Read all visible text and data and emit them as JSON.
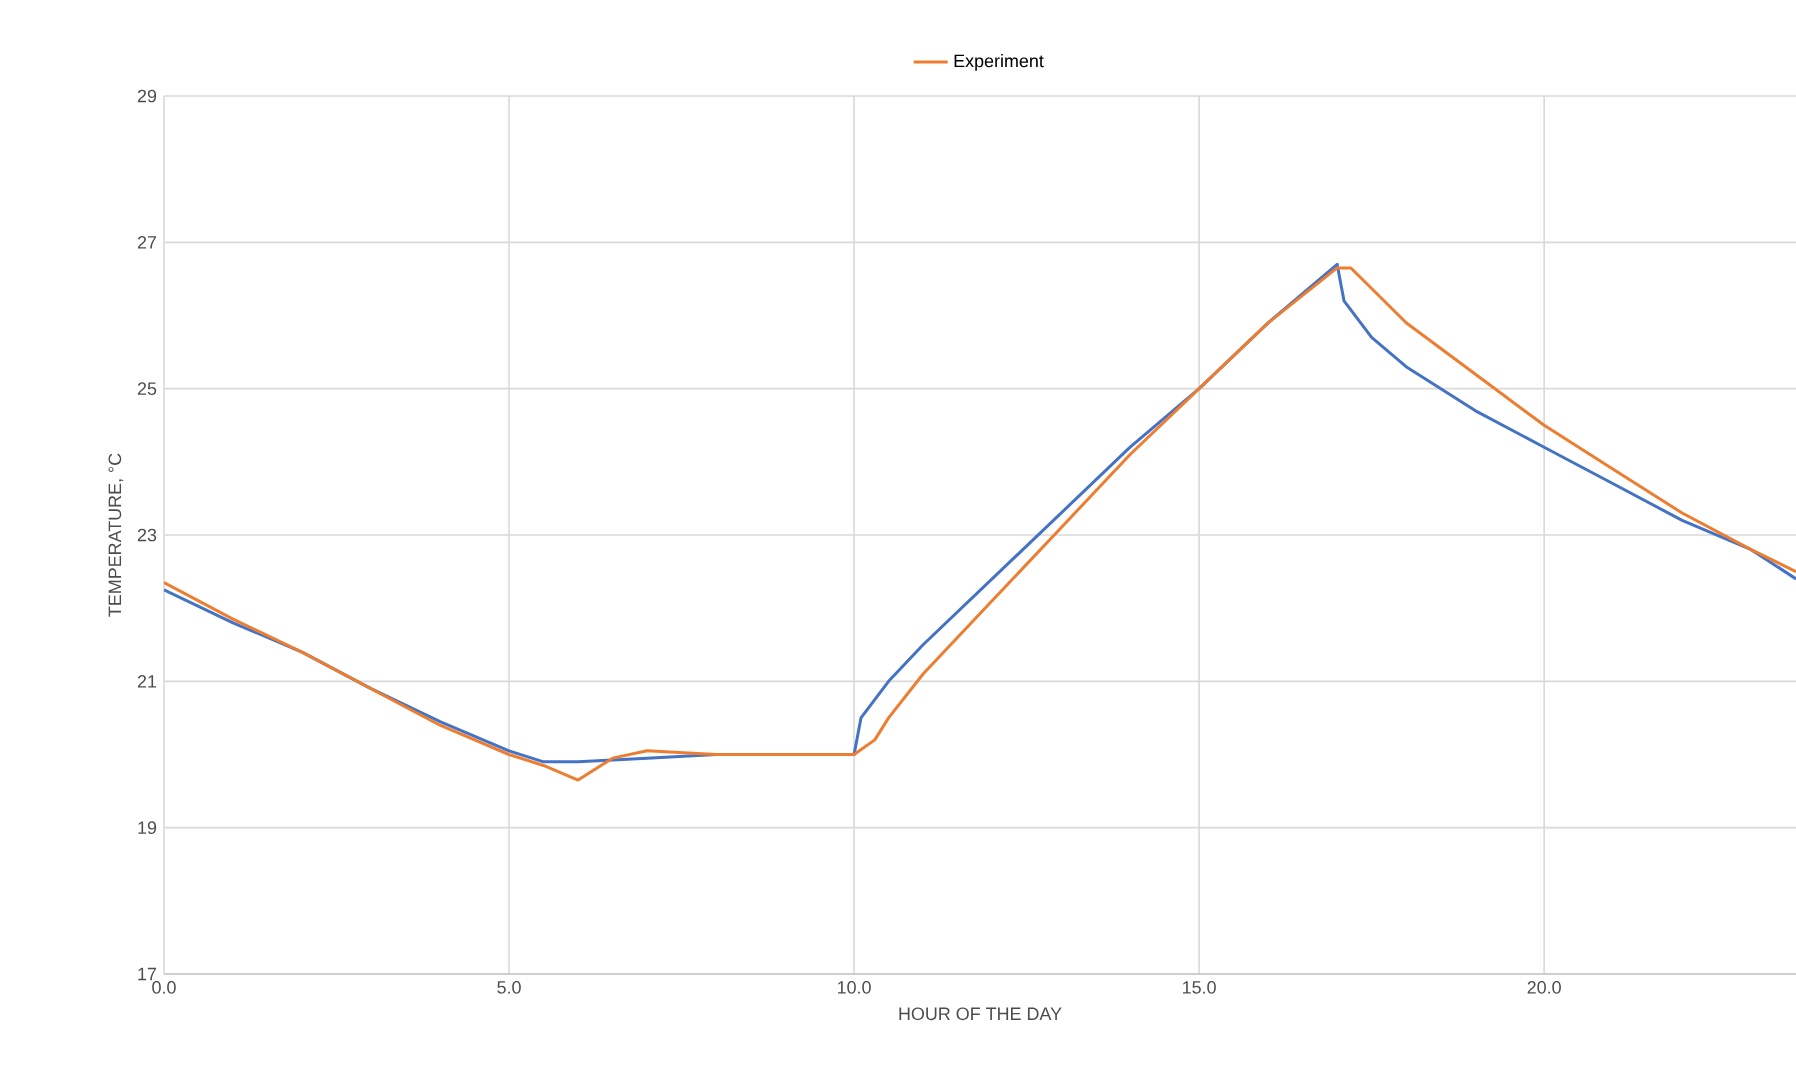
{
  "chart_data": {
    "type": "line",
    "xlabel": "HOUR OF THE DAY",
    "ylabel": "TEMPERATURE, °C",
    "xlim": [
      0,
      23.65
    ],
    "xticks": [
      {
        "value": 0,
        "label": "0.0"
      },
      {
        "value": 5,
        "label": "5.0"
      },
      {
        "value": 10,
        "label": "10.0"
      },
      {
        "value": 15,
        "label": "15.0"
      },
      {
        "value": 20,
        "label": "20.0"
      }
    ],
    "ylim": [
      17,
      29
    ],
    "yticks": [
      17,
      19,
      21,
      23,
      25,
      27,
      29
    ],
    "grid": true,
    "legend": "top",
    "marker": "none",
    "line_style": "solid",
    "series": [
      {
        "color": "#4472c4",
        "x": [
          0,
          1,
          2,
          3,
          4,
          5,
          5.5,
          6,
          7,
          8,
          10,
          10.1,
          10.5,
          11,
          12,
          13,
          14,
          15,
          16,
          17,
          17.1,
          17.5,
          18,
          19,
          20,
          21,
          22,
          23,
          23.65
        ],
        "values": [
          22.25,
          21.8,
          21.4,
          20.9,
          20.45,
          20.05,
          19.9,
          19.9,
          19.95,
          20.0,
          20.0,
          20.5,
          21.0,
          21.5,
          22.4,
          23.3,
          24.2,
          25.0,
          25.9,
          26.7,
          26.2,
          25.7,
          25.3,
          24.7,
          24.2,
          23.7,
          23.2,
          22.8,
          22.4
        ]
      },
      {
        "name": "Experiment",
        "color": "#ed7d31",
        "x": [
          0,
          1,
          2,
          3,
          4,
          5,
          5.5,
          6,
          6.5,
          7,
          8,
          9,
          10,
          10.3,
          10.5,
          11,
          12,
          13,
          14,
          15,
          16,
          17,
          17.2,
          18,
          19,
          20,
          21,
          22,
          23,
          23.65
        ],
        "values": [
          22.35,
          21.85,
          21.4,
          20.9,
          20.4,
          20.0,
          19.85,
          19.65,
          19.95,
          20.05,
          20.0,
          20.0,
          20.0,
          20.2,
          20.5,
          21.1,
          22.1,
          23.1,
          24.1,
          25.0,
          25.9,
          26.65,
          26.65,
          25.9,
          25.2,
          24.5,
          23.9,
          23.3,
          22.8,
          22.5
        ]
      }
    ]
  }
}
